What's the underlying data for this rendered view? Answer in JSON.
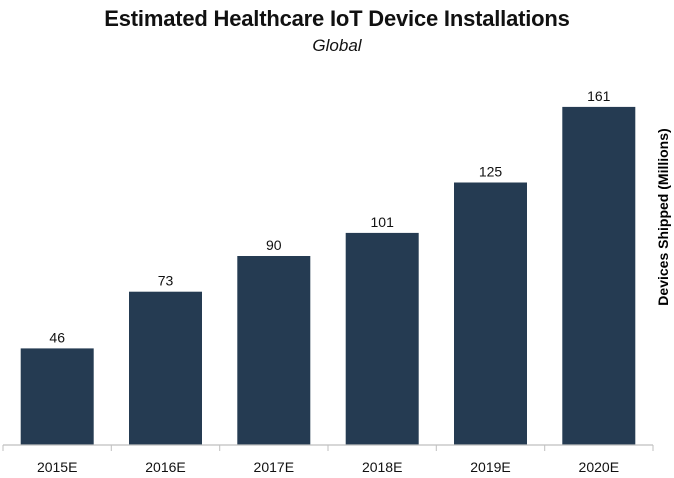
{
  "chart_data": {
    "type": "bar",
    "title": "Estimated Healthcare IoT Device Installations",
    "subtitle": "Global",
    "xlabel": "",
    "ylabel": "Devices Shipped (Millions)",
    "categories": [
      "2015E",
      "2016E",
      "2017E",
      "2018E",
      "2019E",
      "2020E"
    ],
    "values": [
      46,
      73,
      90,
      101,
      125,
      161
    ],
    "ylim": [
      0,
      170
    ],
    "grid": false,
    "legend": "none",
    "bar_color": "#253b52",
    "axis_color": "#bfbfbf"
  }
}
